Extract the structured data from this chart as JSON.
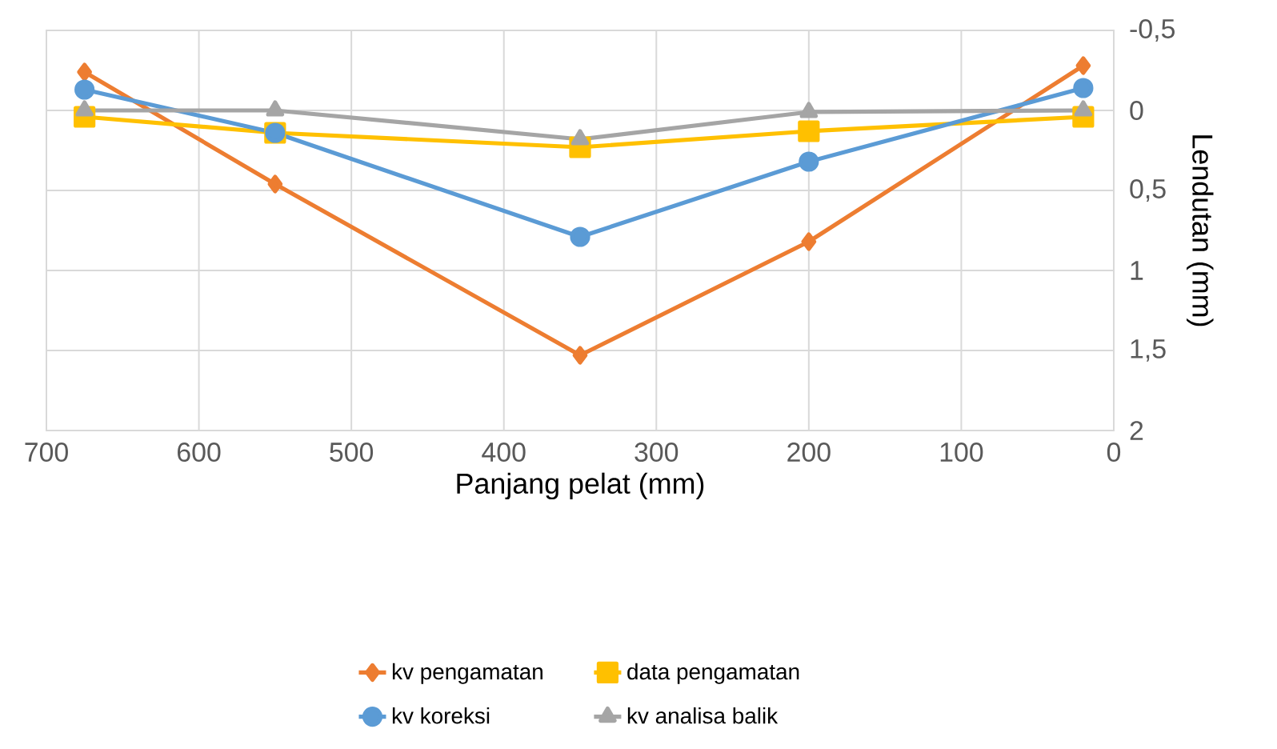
{
  "chart_data": {
    "type": "line",
    "xlabel": "Panjang pelat (mm)",
    "ylabel": "Lendutan (mm)",
    "x": [
      675,
      550,
      350,
      200,
      20
    ],
    "series": [
      {
        "name": "kv pengamatan",
        "color": "#ed7d31",
        "marker": "diamond",
        "values": [
          -0.24,
          0.46,
          1.53,
          0.82,
          -0.28
        ]
      },
      {
        "name": "data pengamatan",
        "color": "#ffc000",
        "marker": "square",
        "values": [
          0.04,
          0.14,
          0.23,
          0.13,
          0.04
        ]
      },
      {
        "name": "kv koreksi",
        "color": "#5b9bd5",
        "marker": "circle",
        "values": [
          -0.13,
          0.14,
          0.79,
          0.32,
          -0.14
        ]
      },
      {
        "name": "kv analisa balik",
        "color": "#a5a5a5",
        "marker": "triangle",
        "values": [
          0,
          0,
          0.18,
          0.01,
          0
        ]
      }
    ],
    "xlim": [
      700,
      0
    ],
    "xticks": [
      700,
      600,
      500,
      400,
      300,
      200,
      100,
      0
    ],
    "ylim": [
      2,
      -0.5
    ],
    "yticks": [
      {
        "value": -0.5,
        "label": "-0,5"
      },
      0,
      {
        "value": 0.5,
        "label": "0,5"
      },
      1,
      {
        "value": 1.5,
        "label": "1,5"
      },
      2
    ],
    "grid": true,
    "legend": "bottom",
    "line_style": "solid"
  }
}
